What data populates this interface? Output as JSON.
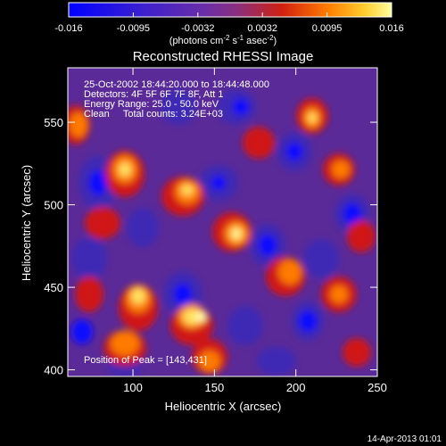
{
  "colorbar": {
    "tick_labels": [
      "-0.016",
      "-0.0095",
      "-0.0032",
      "0.0032",
      "0.0095",
      "0.016"
    ],
    "units_main": "(photons cm",
    "units_sup1": "-2",
    "units_mid1": " s",
    "units_sup2": "-1",
    "units_mid2": " asec",
    "units_sup3": "-2",
    "units_end": ")"
  },
  "image": {
    "title": "Reconstructed RHESSI Image",
    "info_lines": [
      "25-Oct-2002 18:44:20.000 to 18:44:48.000",
      "Detectors: 4F 5F 6F 7F 8F, Att 1",
      "Energy Range: 25.0 - 50.0 keV",
      "Clean     Total counts: 3.24E+03"
    ],
    "peak_label": "Position of Peak = [143,431]",
    "colors": {
      "low": "#0000ff",
      "mid": "#7f3f9f",
      "high": "#ffff7f",
      "background": "#000000"
    }
  },
  "axes": {
    "xlabel": "Heliocentric X (arcsec)",
    "ylabel": "Heliocentric Y (arcsec)",
    "xticks": [
      100,
      150,
      200,
      250
    ],
    "yticks": [
      400,
      450,
      500,
      550
    ],
    "xrange": [
      60,
      250
    ],
    "yrange": [
      396,
      583
    ]
  },
  "footer": {
    "timestamp": "14-Apr-2013 01:01"
  },
  "chart_data": {
    "type": "heatmap",
    "title": "Reconstructed RHESSI Image",
    "xlabel": "Heliocentric X (arcsec)",
    "ylabel": "Heliocentric Y (arcsec)",
    "xlim": [
      60,
      250
    ],
    "ylim": [
      396,
      583
    ],
    "color_range": [
      -0.016,
      0.016
    ],
    "peak": [
      143,
      431
    ]
  }
}
